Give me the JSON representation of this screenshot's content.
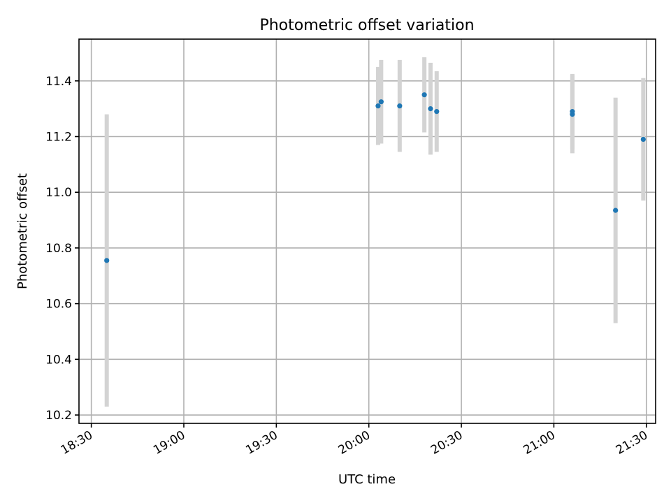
{
  "chart_data": {
    "type": "scatter",
    "title": "Photometric offset variation",
    "xlabel": "UTC time",
    "ylabel": "Photometric offset",
    "x_axis_type": "time",
    "xlim": [
      "18:26",
      "21:33"
    ],
    "ylim": [
      10.17,
      11.55
    ],
    "x_ticks": [
      "18:30",
      "19:00",
      "19:30",
      "20:00",
      "20:30",
      "21:00",
      "21:30"
    ],
    "y_ticks": [
      10.2,
      10.4,
      10.6,
      10.8,
      11.0,
      11.2,
      11.4
    ],
    "y_tick_labels": [
      "10.2",
      "10.4",
      "10.6",
      "10.8",
      "11.0",
      "11.2",
      "11.4"
    ],
    "grid": true,
    "marker_color": "#1f77b4",
    "errorbar_color": "#d3d3d3",
    "points": [
      {
        "x": "18:35",
        "y": 10.755,
        "yerr": 0.525
      },
      {
        "x": "20:03",
        "y": 11.31,
        "yerr": 0.14
      },
      {
        "x": "20:04",
        "y": 11.325,
        "yerr": 0.15
      },
      {
        "x": "20:10",
        "y": 11.31,
        "yerr": 0.165
      },
      {
        "x": "20:18",
        "y": 11.35,
        "yerr": 0.135
      },
      {
        "x": "20:20",
        "y": 11.3,
        "yerr": 0.165
      },
      {
        "x": "20:22",
        "y": 11.29,
        "yerr": 0.145
      },
      {
        "x": "21:06",
        "y": 11.28,
        "yerr": 0.14
      },
      {
        "x": "21:06",
        "y": 11.29,
        "yerr": 0.135
      },
      {
        "x": "21:20",
        "y": 10.935,
        "yerr": 0.405
      },
      {
        "x": "21:29",
        "y": 11.19,
        "yerr": 0.22
      }
    ]
  }
}
